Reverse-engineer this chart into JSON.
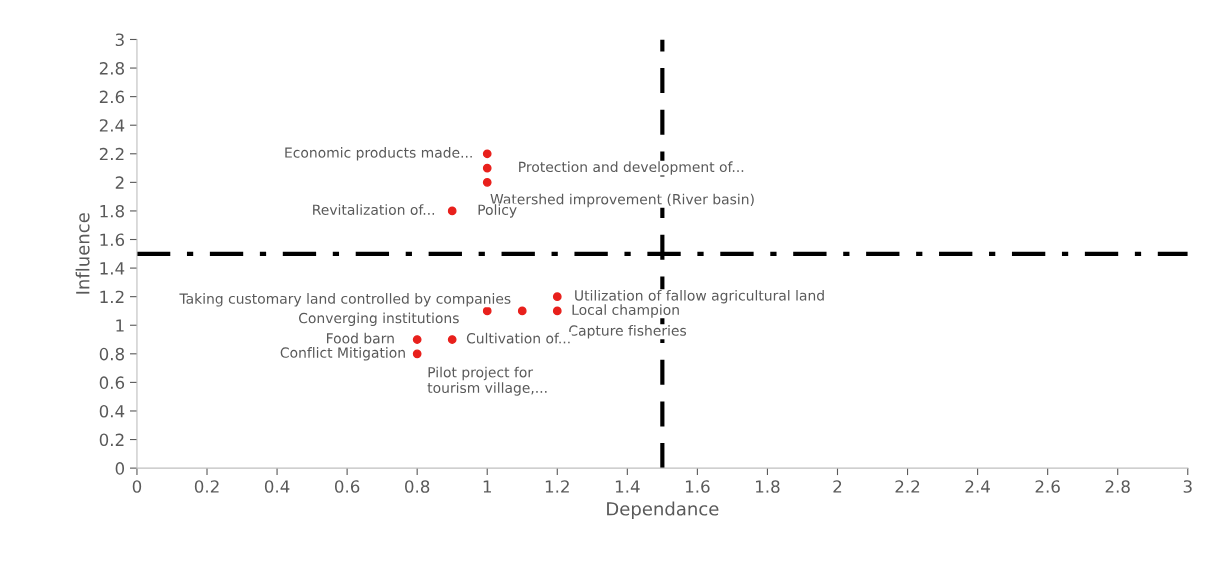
{
  "chart_data": {
    "type": "scatter",
    "xlabel": "Dependance",
    "ylabel": "Influence",
    "series": [
      {
        "color": "#e8201c",
        "x": [
          1,
          1,
          1,
          0.9,
          1.1,
          1.2,
          1.2,
          1,
          0.8,
          0.9,
          0.8
        ],
        "values": [
          2.2,
          2.1,
          2.0,
          1.8,
          1.1,
          1.2,
          1.1,
          1.1,
          0.9,
          0.9,
          0.8
        ]
      }
    ],
    "annotations": [
      {
        "text": "Economic products made...",
        "x": 1,
        "y": 2.2
      },
      {
        "text": "Protection and development of...",
        "x": 1,
        "y": 2.1
      },
      {
        "text": "Watershed improvement (River basin)",
        "x": 1,
        "y": 2.0
      },
      {
        "text": "Revitalization of...",
        "x": 0.9,
        "y": 1.8
      },
      {
        "text": "Policy",
        "x": 0.9,
        "y": 1.8
      },
      {
        "text": "Taking customary land controlled by companies",
        "x": 1.1,
        "y": 1.1
      },
      {
        "text": "Utilization of fallow agricultural land",
        "x": 1.2,
        "y": 1.2
      },
      {
        "text": "Local champion",
        "x": 1.2,
        "y": 1.1
      },
      {
        "text": "Capture fisheries",
        "x": 1.2,
        "y": 1.1
      },
      {
        "text": "Converging institutions",
        "x": 1,
        "y": 1.1
      },
      {
        "text": "Food barn",
        "x": 0.8,
        "y": 0.9
      },
      {
        "text": "Cultivation of...",
        "x": 0.9,
        "y": 0.9
      },
      {
        "text": "Conflict Mitigation",
        "x": 0.8,
        "y": 0.8
      },
      {
        "text": "Pilot project for\ntourism village,...",
        "x": 0.9,
        "y": 0.9
      }
    ],
    "ref_lines": [
      {
        "axis": "x",
        "value": 1.5,
        "color": "#000000",
        "line_style": "dashed"
      },
      {
        "axis": "y",
        "value": 1.5,
        "color": "#000000",
        "line_style": "dashdot"
      }
    ],
    "xlim": [
      0,
      3
    ],
    "ylim": [
      0,
      3
    ],
    "xticks": [
      0,
      0.2,
      0.4,
      0.6,
      0.8,
      1,
      1.2,
      1.4,
      1.6,
      1.8,
      2,
      2.2,
      2.4,
      2.6,
      2.8,
      3
    ],
    "yticks": [
      0,
      0.2,
      0.4,
      0.6,
      0.8,
      1,
      1.2,
      1.4,
      1.6,
      1.8,
      2,
      2.2,
      2.4,
      2.6,
      2.8,
      3
    ],
    "grid": false,
    "legend": false,
    "marker": "circle"
  }
}
